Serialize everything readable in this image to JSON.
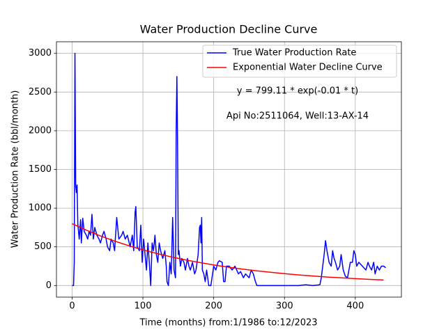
{
  "chart_data": {
    "type": "line",
    "title": "Water Production Decline Curve",
    "x_label": "Time (months) from:1/1986 to:12/2023",
    "y_label": "Water Production Rate (bbl/month)",
    "annotations": [
      "y = 799.11 * exp(-0.01 * t)",
      "Api No:2511064, Well:13-AX-14"
    ],
    "xlim": [
      -22.15,
      465.15
    ],
    "xticks": [
      0,
      100,
      200,
      300,
      400
    ],
    "ylim": [
      -150,
      3150
    ],
    "yticks": [
      0,
      500,
      1000,
      1500,
      2000,
      2500,
      3000
    ],
    "grid": true,
    "legend": "upper right",
    "series": [
      {
        "name": "True Water Production Rate",
        "color": "#0000ff",
        "x": [
          0,
          2,
          3,
          4,
          5,
          6,
          7,
          8,
          10,
          12,
          13,
          15,
          17,
          20,
          22,
          24,
          26,
          28,
          30,
          32,
          35,
          38,
          40,
          43,
          45,
          48,
          50,
          53,
          55,
          58,
          60,
          63,
          66,
          70,
          72,
          75,
          78,
          82,
          85,
          87,
          89,
          90,
          92,
          95,
          97,
          99,
          101,
          103,
          105,
          107,
          109,
          111,
          113,
          115,
          117,
          119,
          121,
          123,
          125,
          128,
          131,
          133,
          134,
          136,
          138,
          140,
          142,
          144,
          146,
          147,
          148,
          149,
          150,
          151,
          153,
          155,
          158,
          160,
          163,
          165,
          167,
          170,
          173,
          175,
          178,
          180,
          181,
          182,
          183,
          184,
          186,
          188,
          190,
          193,
          196,
          200,
          203,
          206,
          208,
          212,
          214,
          216,
          218,
          222,
          226,
          230,
          235,
          238,
          242,
          245,
          250,
          253,
          256,
          259,
          261,
          290,
          320,
          330,
          340,
          350,
          352,
          354,
          356,
          358,
          360,
          363,
          366,
          368,
          370,
          372,
          375,
          378,
          380,
          383,
          386,
          389,
          393,
          396,
          398,
          400,
          402,
          405,
          410,
          415,
          418,
          420,
          423,
          426,
          428,
          431,
          434,
          437,
          440,
          443
        ],
        "values": [
          0,
          0,
          300,
          3000,
          1300,
          1200,
          1300,
          800,
          600,
          850,
          550,
          870,
          700,
          650,
          600,
          700,
          650,
          920,
          600,
          750,
          650,
          600,
          550,
          650,
          700,
          600,
          500,
          450,
          600,
          550,
          450,
          880,
          600,
          650,
          700,
          600,
          650,
          500,
          650,
          450,
          950,
          1020,
          500,
          450,
          780,
          300,
          600,
          400,
          200,
          550,
          300,
          0,
          550,
          450,
          650,
          400,
          300,
          550,
          450,
          350,
          450,
          250,
          50,
          0,
          300,
          150,
          880,
          200,
          100,
          2000,
          2700,
          1800,
          400,
          450,
          250,
          350,
          300,
          200,
          350,
          250,
          200,
          300,
          150,
          200,
          400,
          750,
          780,
          550,
          880,
          200,
          150,
          50,
          200,
          0,
          0,
          250,
          200,
          300,
          320,
          300,
          50,
          50,
          250,
          250,
          200,
          250,
          150,
          180,
          100,
          150,
          100,
          200,
          150,
          50,
          0,
          0,
          0,
          10,
          0,
          10,
          100,
          250,
          400,
          580,
          450,
          300,
          250,
          450,
          350,
          300,
          200,
          250,
          400,
          200,
          120,
          100,
          300,
          300,
          450,
          400,
          250,
          300,
          250,
          200,
          300,
          250,
          200,
          300,
          150,
          250,
          200,
          250,
          250,
          230
        ]
      },
      {
        "name": "Exponential Water Decline Curve",
        "color": "#ff0000",
        "x": [
          0,
          20,
          40,
          60,
          80,
          100,
          120,
          140,
          160,
          180,
          200,
          220,
          240,
          260,
          280,
          300,
          320,
          340,
          360,
          380,
          400,
          420,
          440
        ],
        "values": [
          799,
          716,
          641,
          574,
          515,
          461,
          413,
          370,
          331,
          297,
          266,
          238,
          213,
          191,
          171,
          153,
          137,
          123,
          110,
          99,
          89,
          79,
          71
        ]
      }
    ]
  }
}
